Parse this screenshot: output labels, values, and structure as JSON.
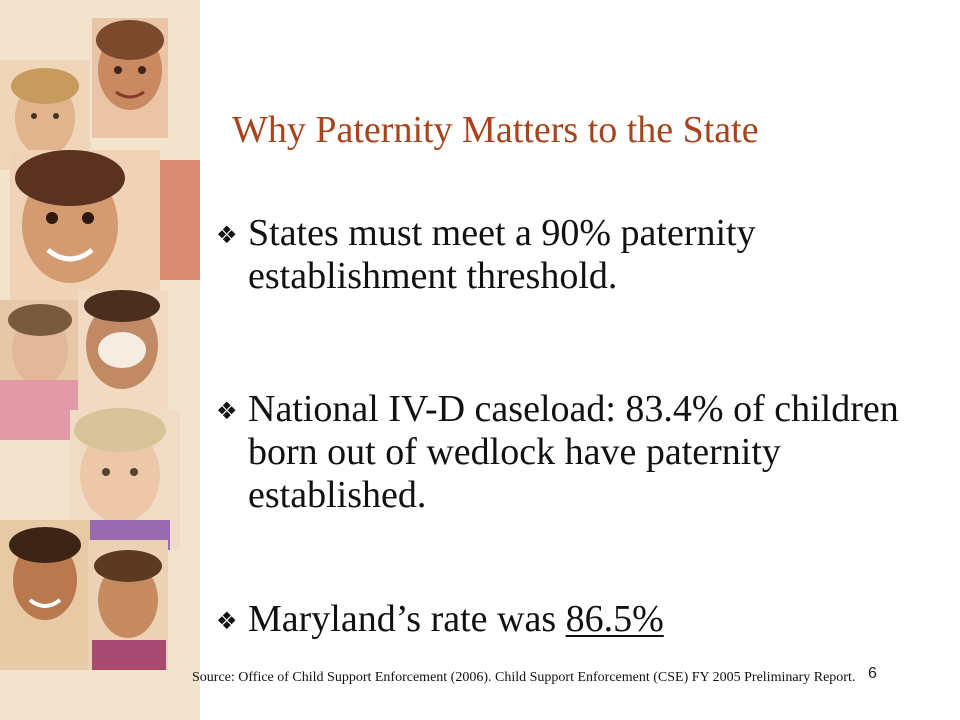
{
  "slide": {
    "title": "Why Paternity Matters to the State",
    "bullets": [
      {
        "text": "States must meet a 90% paternity establishment threshold."
      },
      {
        "text": "National IV-D caseload: 83.4% of children born out of wedlock have paternity established."
      },
      {
        "text_prefix": "Maryland’s rate was ",
        "highlight": "86.5%"
      }
    ],
    "bullet_glyph": "❖",
    "source_note": "Source: Office of Child Support Enforcement (2006).  Child Support Enforcement (CSE) FY 2005 Preliminary Report.",
    "page_number": "6"
  },
  "colors": {
    "title": "#a8431c",
    "text": "#111111",
    "collage_background": "#f6e7d3"
  },
  "collage": {
    "description_icon": "children-faces-collage"
  }
}
